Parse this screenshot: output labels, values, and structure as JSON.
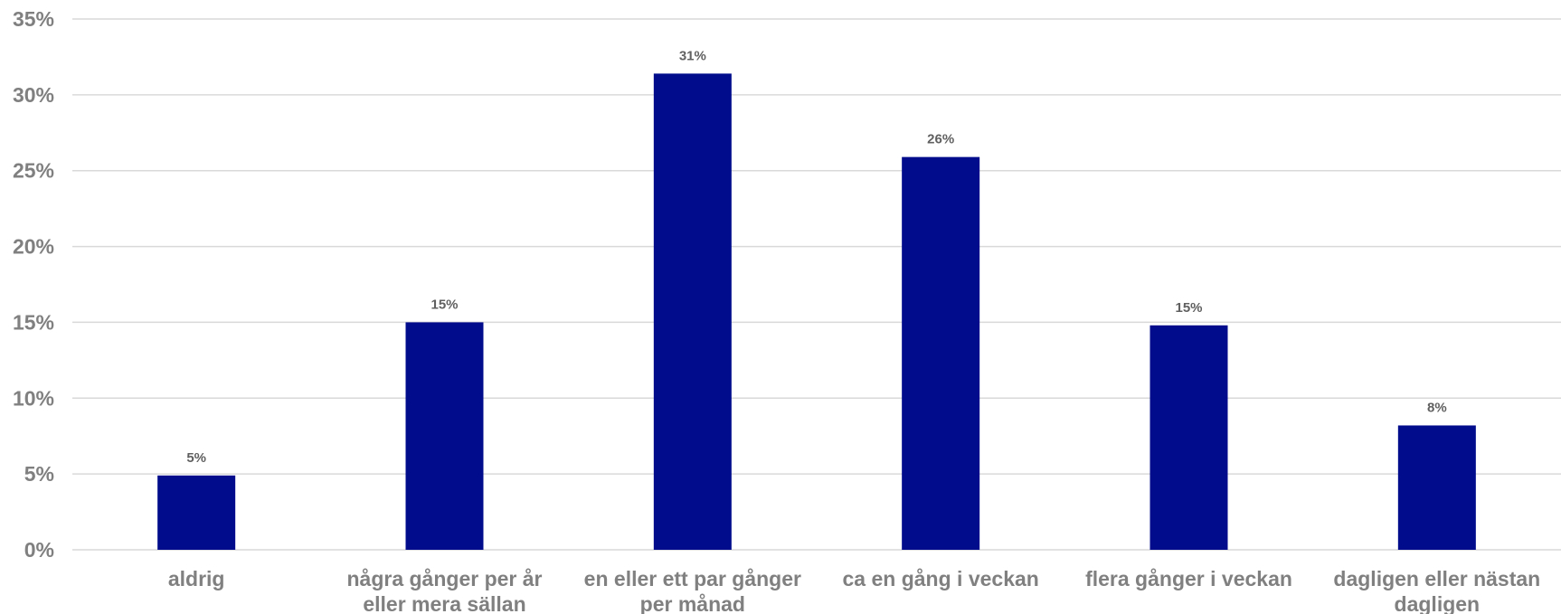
{
  "chart_data": {
    "type": "bar",
    "categories": [
      [
        "aldrig"
      ],
      [
        "några gånger per år",
        "eller mera sällan"
      ],
      [
        "en eller ett par gånger",
        "per månad"
      ],
      [
        "ca en gång i veckan"
      ],
      [
        "flera gånger i veckan"
      ],
      [
        "dagligen eller nästan",
        "dagligen"
      ]
    ],
    "values": [
      4.9,
      15.0,
      31.4,
      25.9,
      14.8,
      8.2
    ],
    "data_labels": [
      "5%",
      "15%",
      "31%",
      "26%",
      "15%",
      "8%"
    ],
    "title": "",
    "xlabel": "",
    "ylabel": "",
    "ylim": [
      0,
      35
    ],
    "yticks": [
      0,
      5,
      10,
      15,
      20,
      25,
      30,
      35
    ],
    "ytick_labels": [
      "0%",
      "5%",
      "10%",
      "15%",
      "20%",
      "25%",
      "30%",
      "35%"
    ],
    "grid": true,
    "legend": "none"
  },
  "colors": {
    "bar": "#000C8C",
    "grid": "#D9D9D9",
    "axis_text": "#808080",
    "data_label": "#606060"
  }
}
